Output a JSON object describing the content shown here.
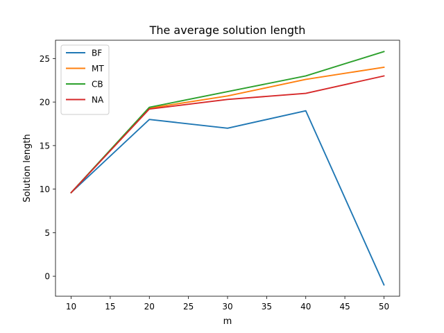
{
  "chart_data": {
    "type": "line",
    "title": "The average solution length",
    "xlabel": "m",
    "ylabel": "Solution length",
    "x": [
      10,
      20,
      30,
      40,
      50
    ],
    "xlim": [
      8,
      52
    ],
    "ylim": [
      -2.3,
      27.1
    ],
    "xticks": [
      "10",
      "15",
      "20",
      "25",
      "30",
      "35",
      "40",
      "45",
      "50"
    ],
    "yticks": [
      "0",
      "5",
      "10",
      "15",
      "20",
      "25"
    ],
    "grid": false,
    "legend_position": "top-left",
    "series": [
      {
        "name": "BF",
        "color": "#1f77b4",
        "values": [
          9.6,
          18.0,
          17.0,
          19.0,
          -1.0
        ]
      },
      {
        "name": "MT",
        "color": "#ff7f0e",
        "values": [
          9.6,
          19.3,
          20.7,
          22.6,
          24.0
        ]
      },
      {
        "name": "CB",
        "color": "#2ca02c",
        "values": [
          9.6,
          19.4,
          21.2,
          23.0,
          25.8
        ]
      },
      {
        "name": "NA",
        "color": "#d62728",
        "values": [
          9.6,
          19.2,
          20.3,
          21.0,
          23.0
        ]
      }
    ]
  }
}
